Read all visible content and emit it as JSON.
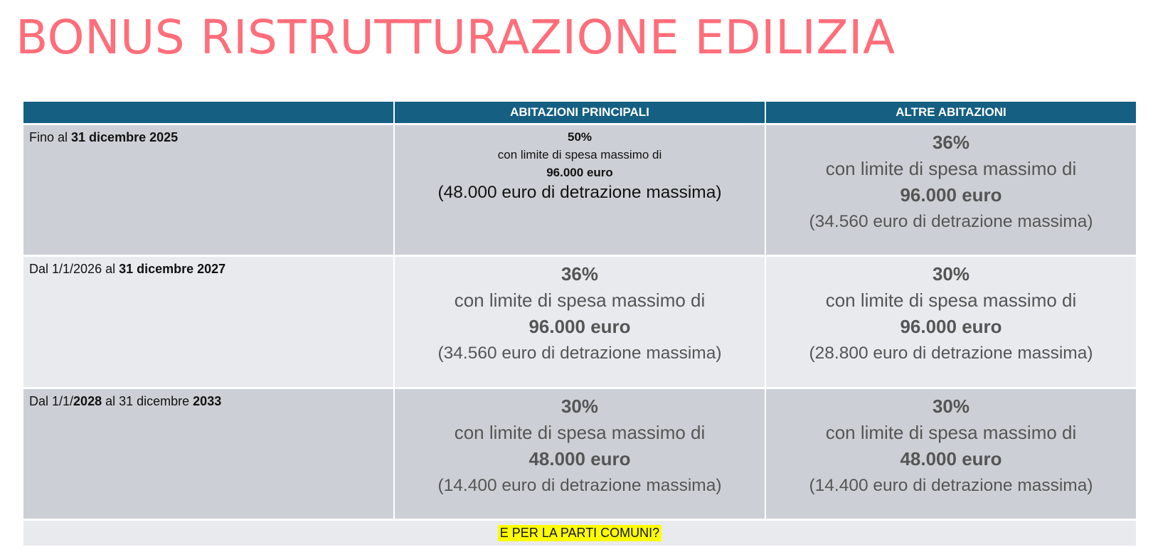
{
  "title": "BONUS RISTRUTTURAZIONE EDILIZIA",
  "table": {
    "headers": [
      "",
      "ABITAZIONI PRINCIPALI",
      "ALTRE ABITAZIONI"
    ],
    "rows": [
      {
        "label": [
          {
            "text": "Fino al ",
            "bold": false
          },
          {
            "text": "31 dicembre 2025",
            "bold": true
          }
        ],
        "principali": {
          "percent": "50%",
          "limit_text": "con limite di spesa massimo di",
          "amount": "96.000 euro",
          "deduction": "(48.000 euro di detrazione massima)"
        },
        "altre": {
          "percent": "36%",
          "limit_text": "con limite di spesa massimo di",
          "amount": "96.000 euro",
          "deduction": "(34.560 euro di detrazione massima)"
        }
      },
      {
        "label": [
          {
            "text": "Dal 1/1/2026 al ",
            "bold": false
          },
          {
            "text": "31 dicembre 2027",
            "bold": true
          }
        ],
        "principali": {
          "percent": "36%",
          "limit_text": "con limite di spesa massimo di",
          "amount": "96.000 euro",
          "deduction": "(34.560 euro di detrazione massima)"
        },
        "altre": {
          "percent": "30%",
          "limit_text": "con limite di spesa massimo di",
          "amount": "96.000 euro",
          "deduction": "(28.800 euro di detrazione massima)"
        }
      },
      {
        "label": [
          {
            "text": "Dal 1/1/",
            "bold": false
          },
          {
            "text": "2028",
            "bold": true
          },
          {
            "text": " al 31 dicembre ",
            "bold": false
          },
          {
            "text": "2033",
            "bold": true
          }
        ],
        "principali": {
          "percent": "30%",
          "limit_text": "con limite di spesa massimo di",
          "amount": "48.000 euro",
          "deduction": "(14.400 euro di detrazione massima)"
        },
        "altre": {
          "percent": "30%",
          "limit_text": "con limite di spesa massimo di",
          "amount": "48.000 euro",
          "deduction": "(14.400 euro di detrazione massima)"
        }
      }
    ],
    "footer": "E PER LA PARTI COMUNI?"
  },
  "colors": {
    "title": "#ff6e7a",
    "header_bg": "#155f83",
    "row_dark": "#ccd0d6",
    "row_light": "#e8eaed",
    "highlight": "#ffff00"
  }
}
